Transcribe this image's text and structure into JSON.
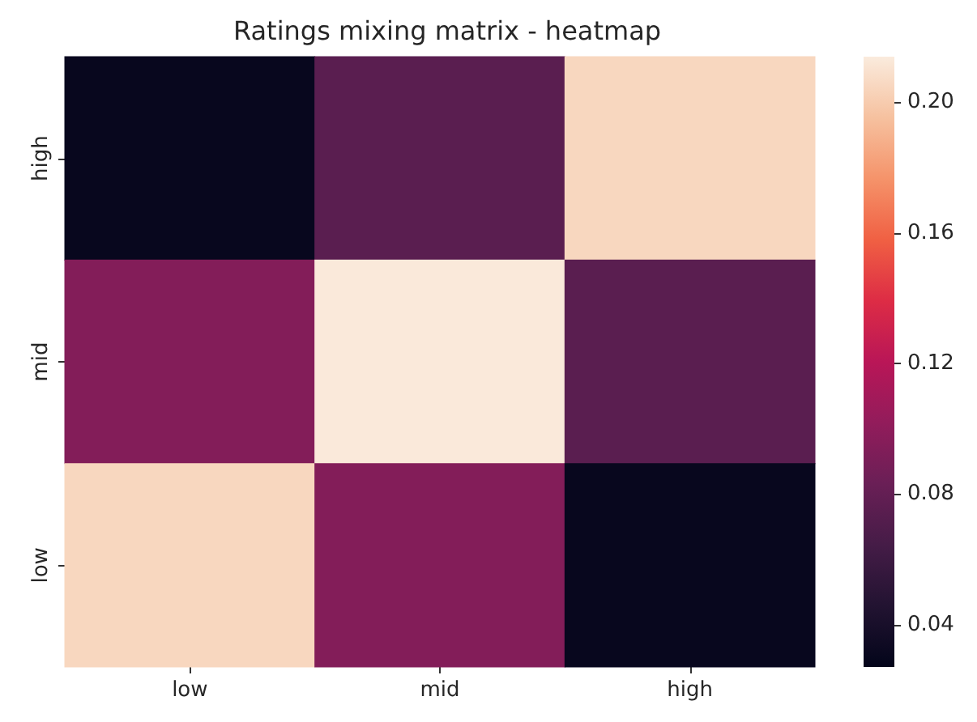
{
  "chart_data": {
    "type": "heatmap",
    "title": "Ratings mixing matrix - heatmap",
    "categories": [
      "low",
      "mid",
      "high"
    ],
    "y_categories": [
      "high",
      "mid",
      "low"
    ],
    "cells": [
      [
        0.03,
        0.075,
        0.205
      ],
      [
        0.095,
        0.213,
        0.075
      ],
      [
        0.205,
        0.095,
        0.03
      ]
    ],
    "clim": [
      0.027,
      0.214
    ],
    "cticks": [
      {
        "value": 0.04,
        "label": "0.04"
      },
      {
        "value": 0.08,
        "label": "0.08"
      },
      {
        "value": 0.12,
        "label": "0.12"
      },
      {
        "value": 0.16,
        "label": "0.16"
      },
      {
        "value": 0.2,
        "label": "0.20"
      }
    ]
  }
}
